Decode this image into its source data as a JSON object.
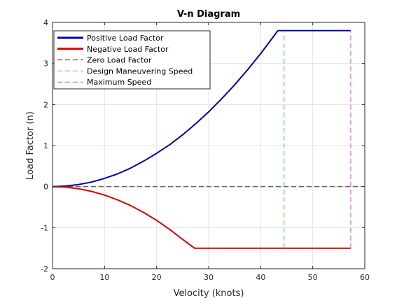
{
  "chart_data": {
    "type": "line",
    "title": "V-n Diagram",
    "xlabel": "Velocity (knots)",
    "ylabel": "Load Factor (n)",
    "xlim": [
      0,
      60
    ],
    "ylim": [
      -2,
      4
    ],
    "xticks": [
      0,
      10,
      20,
      30,
      40,
      50,
      60
    ],
    "yticks": [
      -2,
      -1,
      0,
      1,
      2,
      3,
      4
    ],
    "grid": true,
    "legend_position": "top-left",
    "series": [
      {
        "name": "Positive Load Factor",
        "color": "#0000aa",
        "style": "solid",
        "x": [
          0,
          2.5,
          5,
          7.5,
          10,
          12.5,
          15,
          17.5,
          20,
          22.5,
          25,
          27.5,
          30,
          32.5,
          35,
          37.5,
          40,
          42.5,
          43.3,
          45,
          50,
          55,
          57.3
        ],
        "y": [
          0,
          0.013,
          0.05,
          0.11,
          0.2,
          0.31,
          0.45,
          0.62,
          0.81,
          1.02,
          1.26,
          1.53,
          1.82,
          2.14,
          2.48,
          2.85,
          3.24,
          3.66,
          3.8,
          3.8,
          3.8,
          3.8,
          3.8
        ]
      },
      {
        "name": "Negative Load Factor",
        "color": "#dd0000",
        "style": "solid",
        "x": [
          0,
          2.5,
          5,
          7.5,
          10,
          12.5,
          15,
          17.5,
          20,
          22.5,
          25,
          27.3,
          30,
          35,
          40,
          45,
          50,
          55,
          57.3
        ],
        "y": [
          0,
          -0.013,
          -0.052,
          -0.116,
          -0.206,
          -0.322,
          -0.463,
          -0.63,
          -0.823,
          -1.042,
          -1.286,
          -1.5,
          -1.5,
          -1.5,
          -1.5,
          -1.5,
          -1.5,
          -1.5,
          -1.5
        ]
      },
      {
        "name": "Zero Load Factor",
        "color": "#333333",
        "style": "dashed",
        "x": [
          0,
          59.5
        ],
        "y": [
          0,
          0
        ]
      },
      {
        "name": "Design Maneuvering Speed",
        "color": "#44cc44",
        "style": "dashed",
        "x": [
          44.5,
          44.5
        ],
        "y": [
          -1.5,
          3.8
        ]
      },
      {
        "name": "Maximum Speed",
        "color": "#dd44dd",
        "style": "dashed",
        "x": [
          57.3,
          57.3
        ],
        "y": [
          -1.5,
          3.8
        ]
      }
    ]
  }
}
